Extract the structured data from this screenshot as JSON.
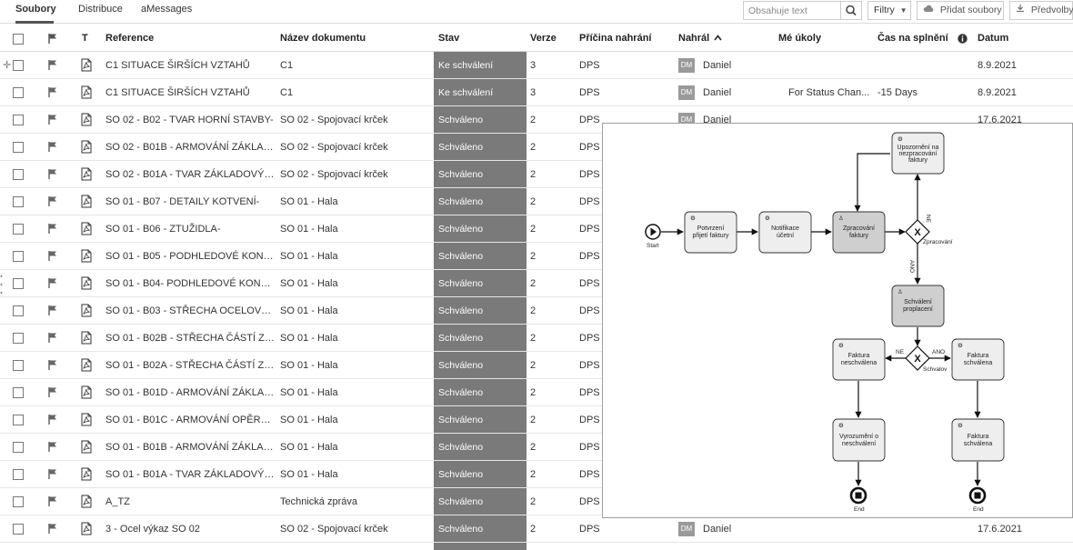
{
  "tabs": [
    {
      "label": "Soubory",
      "active": true
    },
    {
      "label": "Distribuce",
      "active": false
    },
    {
      "label": "aMessages",
      "active": false
    }
  ],
  "toolbar": {
    "search_placeholder": "Obsahuje text",
    "filters_label": "Filtry",
    "add_files_label": "Přidat soubory",
    "preferences_label": "Předvolby"
  },
  "columns": {
    "t": "T",
    "reference": "Reference",
    "name": "Název dokumentu",
    "status": "Stav",
    "version": "Verze",
    "reason": "Příčina nahrání",
    "uploaded_by": "Nahrál",
    "my_tasks": "Mé úkoly",
    "time_to_complete": "Čas na splnění",
    "date": "Datum"
  },
  "rows": [
    {
      "reference": "C1 SITUACE ŠIRŠÍCH VZTAHŮ",
      "name": "C1",
      "status": "Ke schválení",
      "version": "3",
      "reason": "DPS",
      "avatar": "DM",
      "uploader": "Daniel",
      "task": "",
      "time": "",
      "date": "8.9.2021"
    },
    {
      "reference": "C1 SITUACE ŠIRŠÍCH VZTAHŮ",
      "name": "C1",
      "status": "Ke schválení",
      "version": "3",
      "reason": "DPS",
      "avatar": "DM",
      "uploader": "Daniel",
      "task": "For Status Chan...",
      "time": "-15 Days",
      "date": "8.9.2021"
    },
    {
      "reference": "SO 02 - B02 - TVAR HORNÍ STAVBY-",
      "name": "SO 02 - Spojovací krček",
      "status": "Schváleno",
      "version": "2",
      "reason": "DPS",
      "avatar": "DM",
      "uploader": "Daniel",
      "task": "",
      "time": "",
      "date": "17.6.2021"
    },
    {
      "reference": "SO 02 - B01B - ARMOVÁNÍ ZÁKLAD...",
      "name": "SO 02 - Spojovací krček",
      "status": "Schváleno",
      "version": "2",
      "reason": "DPS",
      "avatar": "",
      "uploader": "",
      "task": "",
      "time": "",
      "date": ""
    },
    {
      "reference": "SO 02 - B01A - TVAR ZÁKLADOVÝC...",
      "name": "SO 02 - Spojovací krček",
      "status": "Schváleno",
      "version": "2",
      "reason": "DPS",
      "avatar": "",
      "uploader": "",
      "task": "",
      "time": "",
      "date": ""
    },
    {
      "reference": "SO 01 - B07 - DETAILY KOTVENÍ-",
      "name": "SO 01 - Hala",
      "status": "Schváleno",
      "version": "2",
      "reason": "DPS",
      "avatar": "",
      "uploader": "",
      "task": "",
      "time": "",
      "date": ""
    },
    {
      "reference": "SO 01 - B06 - ZTUŽIDLA-",
      "name": "SO 01 - Hala",
      "status": "Schváleno",
      "version": "2",
      "reason": "DPS",
      "avatar": "",
      "uploader": "",
      "task": "",
      "time": "",
      "date": ""
    },
    {
      "reference": "SO 01 - B05 - PODHLEDOVÉ KONST...",
      "name": "SO 01 - Hala",
      "status": "Schváleno",
      "version": "2",
      "reason": "DPS",
      "avatar": "",
      "uploader": "",
      "task": "",
      "time": "",
      "date": ""
    },
    {
      "reference": "SO 01 - B04- PODHLEDOVÉ KONST...",
      "name": "SO 01 - Hala",
      "status": "Schváleno",
      "version": "2",
      "reason": "DPS",
      "avatar": "",
      "uploader": "",
      "task": "",
      "time": "",
      "date": ""
    },
    {
      "reference": "SO 01 - B03 - STŘECHA OCELOVÉ ...",
      "name": "SO 01 - Hala",
      "status": "Schváleno",
      "version": "2",
      "reason": "DPS",
      "avatar": "",
      "uploader": "",
      "task": "",
      "time": "",
      "date": ""
    },
    {
      "reference": "SO 01 - B02B - STŘECHA ČÁSTÍ ZÁ...",
      "name": "SO 01 - Hala",
      "status": "Schváleno",
      "version": "2",
      "reason": "DPS",
      "avatar": "",
      "uploader": "",
      "task": "",
      "time": "",
      "date": ""
    },
    {
      "reference": "SO 01 - B02A - STŘECHA ČÁSTÍ ZÁ...",
      "name": "SO 01 - Hala",
      "status": "Schváleno",
      "version": "2",
      "reason": "DPS",
      "avatar": "",
      "uploader": "",
      "task": "",
      "time": "",
      "date": ""
    },
    {
      "reference": "SO 01 - B01D - ARMOVÁNÍ ZÁKLAD...",
      "name": "SO 01 - Hala",
      "status": "Schváleno",
      "version": "2",
      "reason": "DPS",
      "avatar": "",
      "uploader": "",
      "task": "",
      "time": "",
      "date": ""
    },
    {
      "reference": "SO 01 - B01C - ARMOVÁNÍ OPĚRNÝ...",
      "name": "SO 01 - Hala",
      "status": "Schváleno",
      "version": "2",
      "reason": "DPS",
      "avatar": "",
      "uploader": "",
      "task": "",
      "time": "",
      "date": ""
    },
    {
      "reference": "SO 01 - B01B - ARMOVÁNÍ ZÁKLAD...",
      "name": "SO 01 - Hala",
      "status": "Schváleno",
      "version": "2",
      "reason": "DPS",
      "avatar": "",
      "uploader": "",
      "task": "",
      "time": "",
      "date": ""
    },
    {
      "reference": "SO 01 - B01A - TVAR ZÁKLADOVÝC...",
      "name": "SO 01 - Hala",
      "status": "Schváleno",
      "version": "2",
      "reason": "DPS",
      "avatar": "",
      "uploader": "",
      "task": "",
      "time": "",
      "date": ""
    },
    {
      "reference": "A_TZ",
      "name": "Technická zpráva",
      "status": "Schváleno",
      "version": "2",
      "reason": "DPS",
      "avatar": "",
      "uploader": "",
      "task": "",
      "time": "",
      "date": ""
    },
    {
      "reference": "3 - Ocel výkaz SO 02",
      "name": "SO 02 - Spojovací krček",
      "status": "Schváleno",
      "version": "2",
      "reason": "DPS",
      "avatar": "DM",
      "uploader": "Daniel",
      "task": "",
      "time": "",
      "date": "17.6.2021"
    }
  ],
  "diagram": {
    "start_label": "Start",
    "end_label_1": "End",
    "end_label_2": "End",
    "task_confirm": [
      "Potvrzení",
      "přijetí faktury"
    ],
    "task_notify": [
      "Notifikace",
      "účetní"
    ],
    "task_process": [
      "Zpracování",
      "faktury"
    ],
    "task_warning": [
      "Upozornění na",
      "nezpracování",
      "faktury"
    ],
    "task_approval": [
      "Schválení",
      "proplacení"
    ],
    "task_rejected": [
      "Faktura",
      "neschválena"
    ],
    "task_approved": [
      "Faktura",
      "schválena"
    ],
    "task_notice_reject": [
      "Vyrozumění o",
      "neschválení"
    ],
    "task_final": [
      "Faktura",
      "schválena"
    ],
    "gateway_1_label": "Zpracování",
    "gateway_2_label": "Schvalov",
    "label_ne_1": "NE",
    "label_ano_1": "ANO",
    "label_ne_2": "NE",
    "label_ano_2": "ANO"
  },
  "colors": {
    "status_column": "#7a7a7a",
    "task_fill": "#eeeeee",
    "user_task_fill": "#cfcfcf",
    "avatar": "#9a9a9a"
  }
}
